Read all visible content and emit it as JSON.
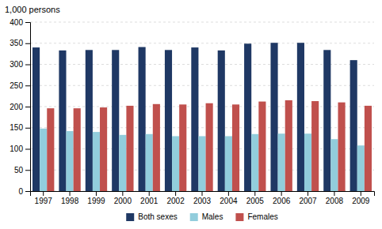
{
  "chart_data": {
    "type": "bar",
    "ylabel": "1,000 persons",
    "categories": [
      "1997",
      "1998",
      "1999",
      "2000",
      "2001",
      "2002",
      "2003",
      "2004",
      "2005",
      "2006",
      "2007",
      "2008",
      "2009"
    ],
    "series": [
      {
        "name": "Both sexes",
        "color": "#1F3864",
        "values": [
          340,
          333,
          334,
          334,
          341,
          334,
          340,
          333,
          349,
          351,
          351,
          334,
          310
        ]
      },
      {
        "name": "Males",
        "color": "#92CDDC",
        "values": [
          148,
          142,
          140,
          133,
          135,
          130,
          130,
          130,
          135,
          136,
          136,
          123,
          108
        ]
      },
      {
        "name": "Females",
        "color": "#C0504D",
        "values": [
          196,
          196,
          198,
          202,
          206,
          205,
          208,
          205,
          212,
          215,
          213,
          210,
          202
        ]
      }
    ],
    "ylim": [
      0,
      400
    ],
    "yticks": [
      0,
      50,
      100,
      150,
      200,
      250,
      300,
      350,
      400
    ],
    "grid": true,
    "legend": "bottom"
  }
}
